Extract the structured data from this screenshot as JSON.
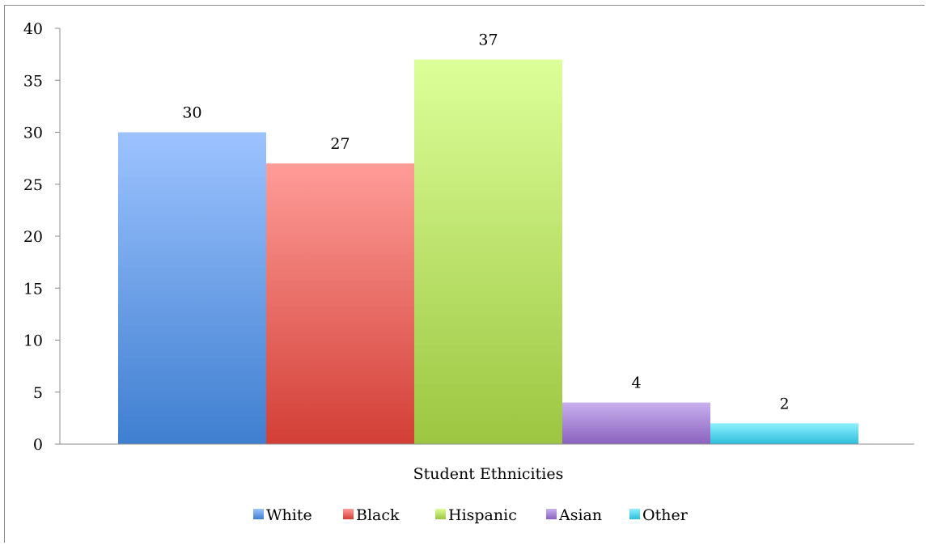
{
  "chart_data": {
    "type": "bar",
    "category": "Student Ethnicities",
    "ylim": [
      0,
      40
    ],
    "yticks": [
      0,
      5,
      10,
      15,
      20,
      25,
      30,
      35,
      40
    ],
    "grid": false,
    "legend_position": "bottom",
    "series": [
      {
        "name": "White",
        "value": 30,
        "color_top": "#9dc3ff",
        "color_bottom": "#3f7fd0",
        "legend_color": "#4f86d6"
      },
      {
        "name": "Black",
        "value": 27,
        "color_top": "#ff9c98",
        "color_bottom": "#d23f36",
        "legend_color": "#d94c44"
      },
      {
        "name": "Hispanic",
        "value": 37,
        "color_top": "#ddff99",
        "color_bottom": "#9cc641",
        "legend_color": "#a8cf55"
      },
      {
        "name": "Asian",
        "value": 4,
        "color_top": "#c9b0ee",
        "color_bottom": "#8a62bf",
        "legend_color": "#9272c4"
      },
      {
        "name": "Other",
        "value": 2,
        "color_top": "#8ff0ff",
        "color_bottom": "#2dbedd",
        "legend_color": "#3cc3e2"
      }
    ]
  }
}
